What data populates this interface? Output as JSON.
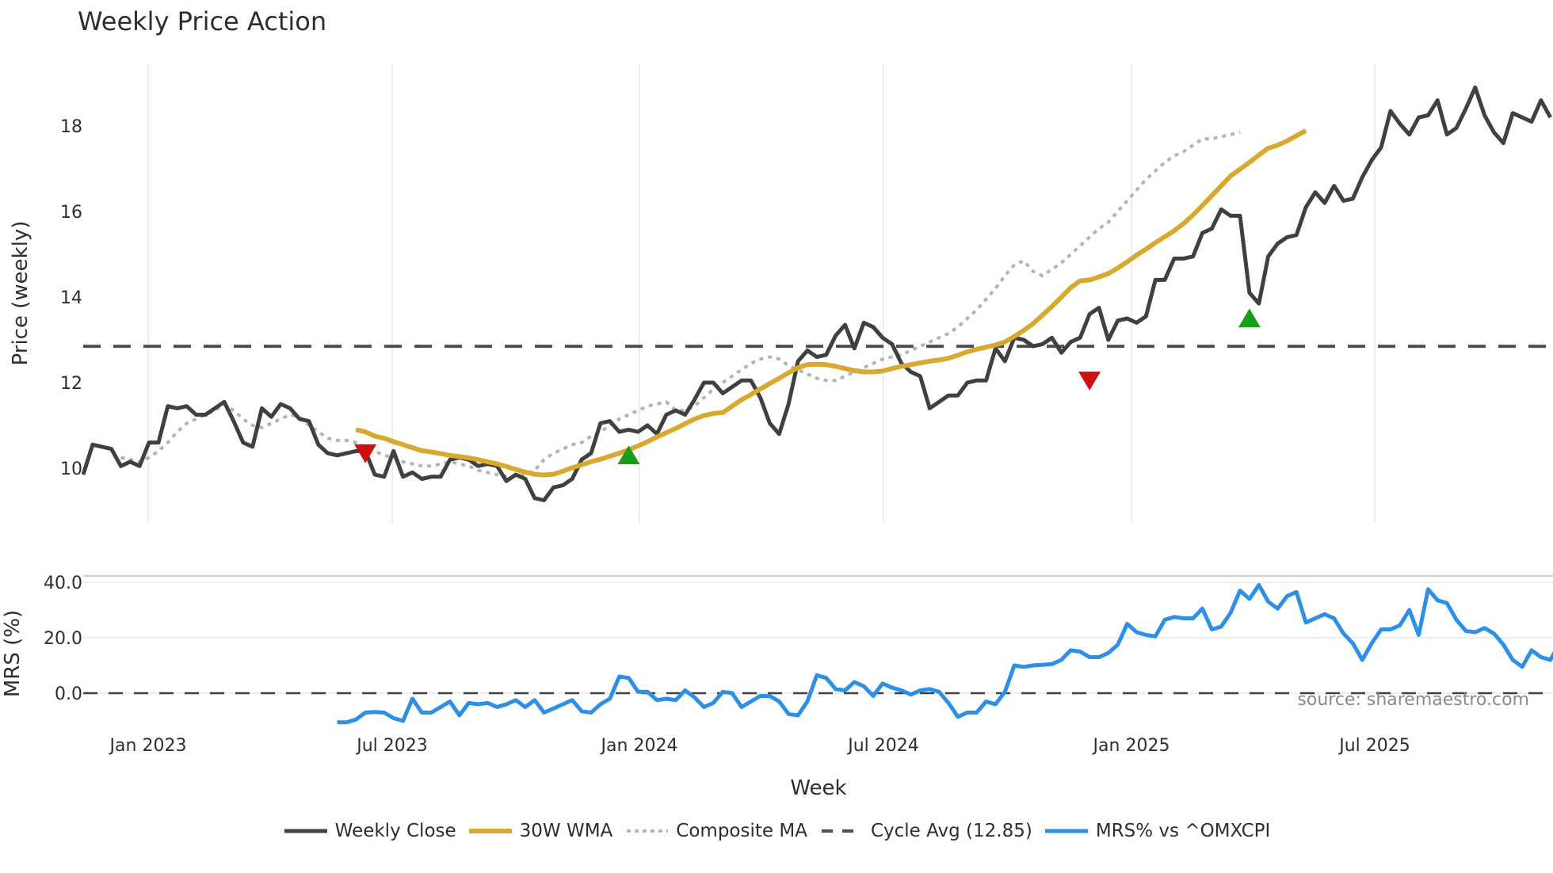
{
  "chart_data": {
    "type": "line",
    "title": "Weekly Price Action",
    "xlabel": "Week",
    "source_note": "source: sharemaestro.com",
    "x_tick_labels": [
      "Jan 2023",
      "Jul 2023",
      "Jan 2024",
      "Jul 2024",
      "Jan 2025",
      "Jul 2025"
    ],
    "panels": [
      {
        "name": "price",
        "ylabel": "Price (weekly)",
        "y_tick_labels": [
          "10",
          "12",
          "14",
          "16",
          "18"
        ],
        "ylim": [
          9.0,
          19.5
        ],
        "grid": true
      },
      {
        "name": "mrs",
        "ylabel": "MRS (%)",
        "y_tick_labels": [
          "0.0",
          "20.0",
          "40.0"
        ],
        "ylim": [
          -12,
          42
        ],
        "grid": true
      }
    ],
    "x_start": "2022-11-14",
    "x_step": "1 week",
    "series": [
      {
        "name": "Weekly Close",
        "color": "#404040",
        "panel": "price",
        "values": [
          9.85,
          10.55,
          10.5,
          10.45,
          10.05,
          10.15,
          10.05,
          10.6,
          10.6,
          11.45,
          11.4,
          11.45,
          11.25,
          11.25,
          11.4,
          11.55,
          11.1,
          10.6,
          10.5,
          11.4,
          11.2,
          11.5,
          11.4,
          11.15,
          11.1,
          10.55,
          10.35,
          10.3,
          10.35,
          10.4,
          10.4,
          9.85,
          9.8,
          10.4,
          9.8,
          9.9,
          9.75,
          9.8,
          9.8,
          10.2,
          10.25,
          10.2,
          10.05,
          10.1,
          10.05,
          9.7,
          9.85,
          9.75,
          9.3,
          9.25,
          9.55,
          9.6,
          9.75,
          10.2,
          10.35,
          11.05,
          11.1,
          10.85,
          10.9,
          10.85,
          11.0,
          10.8,
          11.25,
          11.35,
          11.25,
          11.6,
          12.0,
          12.0,
          11.75,
          11.9,
          12.05,
          12.05,
          11.65,
          11.05,
          10.8,
          11.5,
          12.5,
          12.75,
          12.6,
          12.65,
          13.1,
          13.35,
          12.8,
          13.4,
          13.3,
          13.05,
          12.9,
          12.45,
          12.25,
          12.15,
          11.4,
          11.55,
          11.7,
          11.7,
          12.0,
          12.05,
          12.05,
          12.8,
          12.5,
          13.05,
          13.0,
          12.85,
          12.9,
          13.05,
          12.7,
          12.95,
          13.05,
          13.6,
          13.75,
          13.0,
          13.45,
          13.5,
          13.4,
          13.55,
          14.4,
          14.4,
          14.9,
          14.9,
          14.95,
          15.5,
          15.6,
          16.05,
          15.9,
          15.9,
          14.1,
          13.85,
          14.95,
          15.25,
          15.4,
          15.45,
          16.1,
          16.45,
          16.2,
          16.6,
          16.25,
          16.3,
          16.8,
          17.2,
          17.5,
          18.35,
          18.05,
          17.8,
          18.2,
          18.25,
          18.6,
          17.8,
          17.95,
          18.4,
          18.9,
          18.25,
          17.85,
          17.6,
          18.3,
          18.2,
          18.1,
          18.6,
          18.2
        ]
      },
      {
        "name": "30W WMA",
        "color": "#d9a82e",
        "panel": "price",
        "start_index": 29,
        "values": [
          10.9,
          10.85,
          10.75,
          10.7,
          10.62,
          10.55,
          10.48,
          10.41,
          10.38,
          10.34,
          10.3,
          10.27,
          10.24,
          10.2,
          10.15,
          10.1,
          10.04,
          9.97,
          9.91,
          9.86,
          9.84,
          9.86,
          9.93,
          10.01,
          10.08,
          10.15,
          10.21,
          10.28,
          10.35,
          10.43,
          10.52,
          10.62,
          10.73,
          10.83,
          10.93,
          11.04,
          11.15,
          11.23,
          11.28,
          11.3,
          11.45,
          11.6,
          11.72,
          11.85,
          11.98,
          12.1,
          12.23,
          12.35,
          12.42,
          12.43,
          12.42,
          12.38,
          12.33,
          12.28,
          12.25,
          12.25,
          12.27,
          12.33,
          12.38,
          12.42,
          12.46,
          12.5,
          12.53,
          12.57,
          12.64,
          12.72,
          12.78,
          12.83,
          12.88,
          12.95,
          13.08,
          13.22,
          13.38,
          13.58,
          13.78,
          14.0,
          14.22,
          14.38,
          14.4,
          14.47,
          14.55,
          14.68,
          14.82,
          14.98,
          15.12,
          15.27,
          15.41,
          15.55,
          15.72,
          15.92,
          16.14,
          16.37,
          16.6,
          16.83,
          16.99,
          17.15,
          17.32,
          17.48,
          17.55,
          17.65,
          17.77,
          17.89
        ]
      },
      {
        "name": "Composite MA",
        "color": "#b4b4b4",
        "panel": "price",
        "start_index": 4,
        "values": [
          10.25,
          10.2,
          10.15,
          10.25,
          10.4,
          10.6,
          10.85,
          11.05,
          11.15,
          11.25,
          11.35,
          11.5,
          11.35,
          11.15,
          11.0,
          10.95,
          11.05,
          11.15,
          11.25,
          11.2,
          11.0,
          10.85,
          10.7,
          10.65,
          10.65,
          10.6,
          10.5,
          10.4,
          10.3,
          10.25,
          10.15,
          10.1,
          10.05,
          10.05,
          10.1,
          10.15,
          10.1,
          10.05,
          9.95,
          9.9,
          9.85,
          9.8,
          9.8,
          9.85,
          9.95,
          10.2,
          10.35,
          10.45,
          10.55,
          10.6,
          10.75,
          10.85,
          11.0,
          11.15,
          11.25,
          11.35,
          11.45,
          11.5,
          11.55,
          11.35,
          11.35,
          11.45,
          11.65,
          11.85,
          12.0,
          12.15,
          12.3,
          12.45,
          12.55,
          12.6,
          12.55,
          12.4,
          12.3,
          12.2,
          12.1,
          12.05,
          12.05,
          12.15,
          12.25,
          12.35,
          12.45,
          12.55,
          12.6,
          12.65,
          12.75,
          12.85,
          12.95,
          13.05,
          13.15,
          13.3,
          13.5,
          13.7,
          13.95,
          14.2,
          14.5,
          14.75,
          14.85,
          14.6,
          14.5,
          14.65,
          14.8,
          15.0,
          15.2,
          15.4,
          15.6,
          15.75,
          16.0,
          16.25,
          16.5,
          16.75,
          16.95,
          17.15,
          17.3,
          17.4,
          17.55,
          17.7,
          17.7,
          17.75,
          17.8,
          17.85
        ]
      },
      {
        "name": "Cycle Avg (12.85)",
        "color": "#505050",
        "panel": "price",
        "constant": 12.85
      },
      {
        "name": "MRS% vs ^OMXCPI",
        "color": "#2e8fe6",
        "panel": "mrs",
        "start_index": 27,
        "values": [
          -10.5,
          -10.5,
          -9.5,
          -7.0,
          -6.8,
          -7.0,
          -9.0,
          -10.0,
          -2.0,
          -7.0,
          -7.0,
          -5.0,
          -3.0,
          -8.0,
          -3.5,
          -4.0,
          -3.5,
          -5.0,
          -4.0,
          -2.5,
          -5.0,
          -2.5,
          -7.0,
          -5.5,
          -4.0,
          -2.5,
          -6.5,
          -7.0,
          -4.0,
          -2.0,
          6.0,
          5.5,
          0.5,
          0.5,
          -2.5,
          -2.0,
          -2.5,
          1.0,
          -1.5,
          -5.0,
          -3.5,
          0.5,
          0.0,
          -5.0,
          -3.0,
          -1.0,
          -1.0,
          -3.0,
          -7.5,
          -8.0,
          -3.0,
          6.5,
          5.5,
          1.5,
          1.0,
          4.0,
          2.5,
          -1.0,
          3.5,
          2.0,
          1.0,
          -0.5,
          1.0,
          1.5,
          0.5,
          -3.5,
          -8.5,
          -7.0,
          -7.0,
          -3.0,
          -4.0,
          0.5,
          10.0,
          9.5,
          10.0,
          10.2,
          10.5,
          12.0,
          15.5,
          15.0,
          13.0,
          13.0,
          14.5,
          17.5,
          25.0,
          22.0,
          21.0,
          20.5,
          26.5,
          27.5,
          27.0,
          27.0,
          30.5,
          23.0,
          24.0,
          29.0,
          37.0,
          34.0,
          39.0,
          33.0,
          30.5,
          35.0,
          36.5,
          25.5,
          27.0,
          28.5,
          27.0,
          21.5,
          18.0,
          12.0,
          18.0,
          23.0,
          23.0,
          24.5,
          30.0,
          21.0,
          37.5,
          33.5,
          32.5,
          26.5,
          22.5,
          22.0,
          23.5,
          21.5,
          17.5,
          12.0,
          9.5,
          15.5,
          13.0,
          12.0,
          18.0,
          13.5
        ]
      }
    ],
    "markers": [
      {
        "type": "sell",
        "shape": "triangle-down",
        "color": "#cc1111",
        "index": 30,
        "value": 10.35
      },
      {
        "type": "buy",
        "shape": "triangle-up",
        "color": "#1a9e1a",
        "index": 58,
        "value": 10.3
      },
      {
        "type": "sell",
        "shape": "triangle-down",
        "color": "#cc1111",
        "index": 107,
        "value": 12.05
      },
      {
        "type": "buy",
        "shape": "triangle-up",
        "color": "#1a9e1a",
        "index": 124,
        "value": 13.5
      }
    ]
  },
  "legend": [
    {
      "label": "Weekly Close",
      "style": "solid-dark"
    },
    {
      "label": "30W WMA",
      "style": "solid-gold"
    },
    {
      "label": "Composite MA",
      "style": "dotted-grey"
    },
    {
      "label": "Cycle Avg (12.85)",
      "style": "dashed-dark"
    },
    {
      "label": "MRS% vs ^OMXCPI",
      "style": "solid-blue"
    }
  ]
}
